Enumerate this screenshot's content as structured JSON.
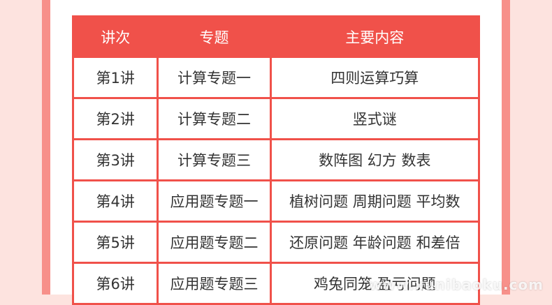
{
  "table": {
    "header": [
      "讲次",
      "专题",
      "主要内容"
    ],
    "rows": [
      [
        "第1讲",
        "计算专题一",
        "四则运算巧算"
      ],
      [
        "第2讲",
        "计算专题二",
        "竖式谜"
      ],
      [
        "第3讲",
        "计算专题三",
        "数阵图 幻方 数表"
      ],
      [
        "第4讲",
        "应用题专题一",
        "植树问题 周期问题 平均数"
      ],
      [
        "第5讲",
        "应用题专题二",
        "还原问题 年龄问题 和差倍"
      ],
      [
        "第6讲",
        "应用题专题三",
        "鸡兔同笼 盈亏问题"
      ]
    ]
  },
  "watermark": "www.xunibaoku.com"
}
